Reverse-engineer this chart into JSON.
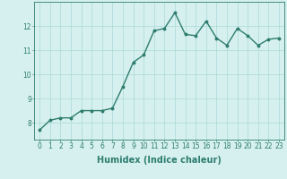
{
  "xlabel": "Humidex (Indice chaleur)",
  "ylabel": "",
  "x": [
    0,
    1,
    2,
    3,
    4,
    5,
    6,
    7,
    8,
    9,
    10,
    11,
    12,
    13,
    14,
    15,
    16,
    17,
    18,
    19,
    20,
    21,
    22,
    23
  ],
  "y": [
    7.7,
    8.1,
    8.2,
    8.2,
    8.5,
    8.5,
    8.5,
    8.6,
    9.5,
    10.5,
    10.8,
    11.8,
    11.9,
    12.55,
    11.65,
    11.6,
    12.2,
    11.5,
    11.2,
    11.9,
    11.6,
    11.2,
    11.45,
    11.5
  ],
  "line_color": "#2e7d6e",
  "marker": "o",
  "marker_size": 1.8,
  "line_width": 1.0,
  "bg_color": "#d6f0f0",
  "grid_color": "#aad8d8",
  "tick_color": "#2e7d6e",
  "label_color": "#2e7d6e",
  "ylim": [
    7.3,
    13.0
  ],
  "xlim": [
    -0.5,
    23.5
  ],
  "yticks": [
    8,
    9,
    10,
    11,
    12
  ],
  "xticks": [
    0,
    1,
    2,
    3,
    4,
    5,
    6,
    7,
    8,
    9,
    10,
    11,
    12,
    13,
    14,
    15,
    16,
    17,
    18,
    19,
    20,
    21,
    22,
    23
  ],
  "xtick_labels": [
    "0",
    "1",
    "2",
    "3",
    "4",
    "5",
    "6",
    "7",
    "8",
    "9",
    "10",
    "11",
    "12",
    "13",
    "14",
    "15",
    "16",
    "17",
    "18",
    "19",
    "20",
    "21",
    "22",
    "23"
  ],
  "fontsize_ticks": 5.5,
  "fontsize_xlabel": 7
}
